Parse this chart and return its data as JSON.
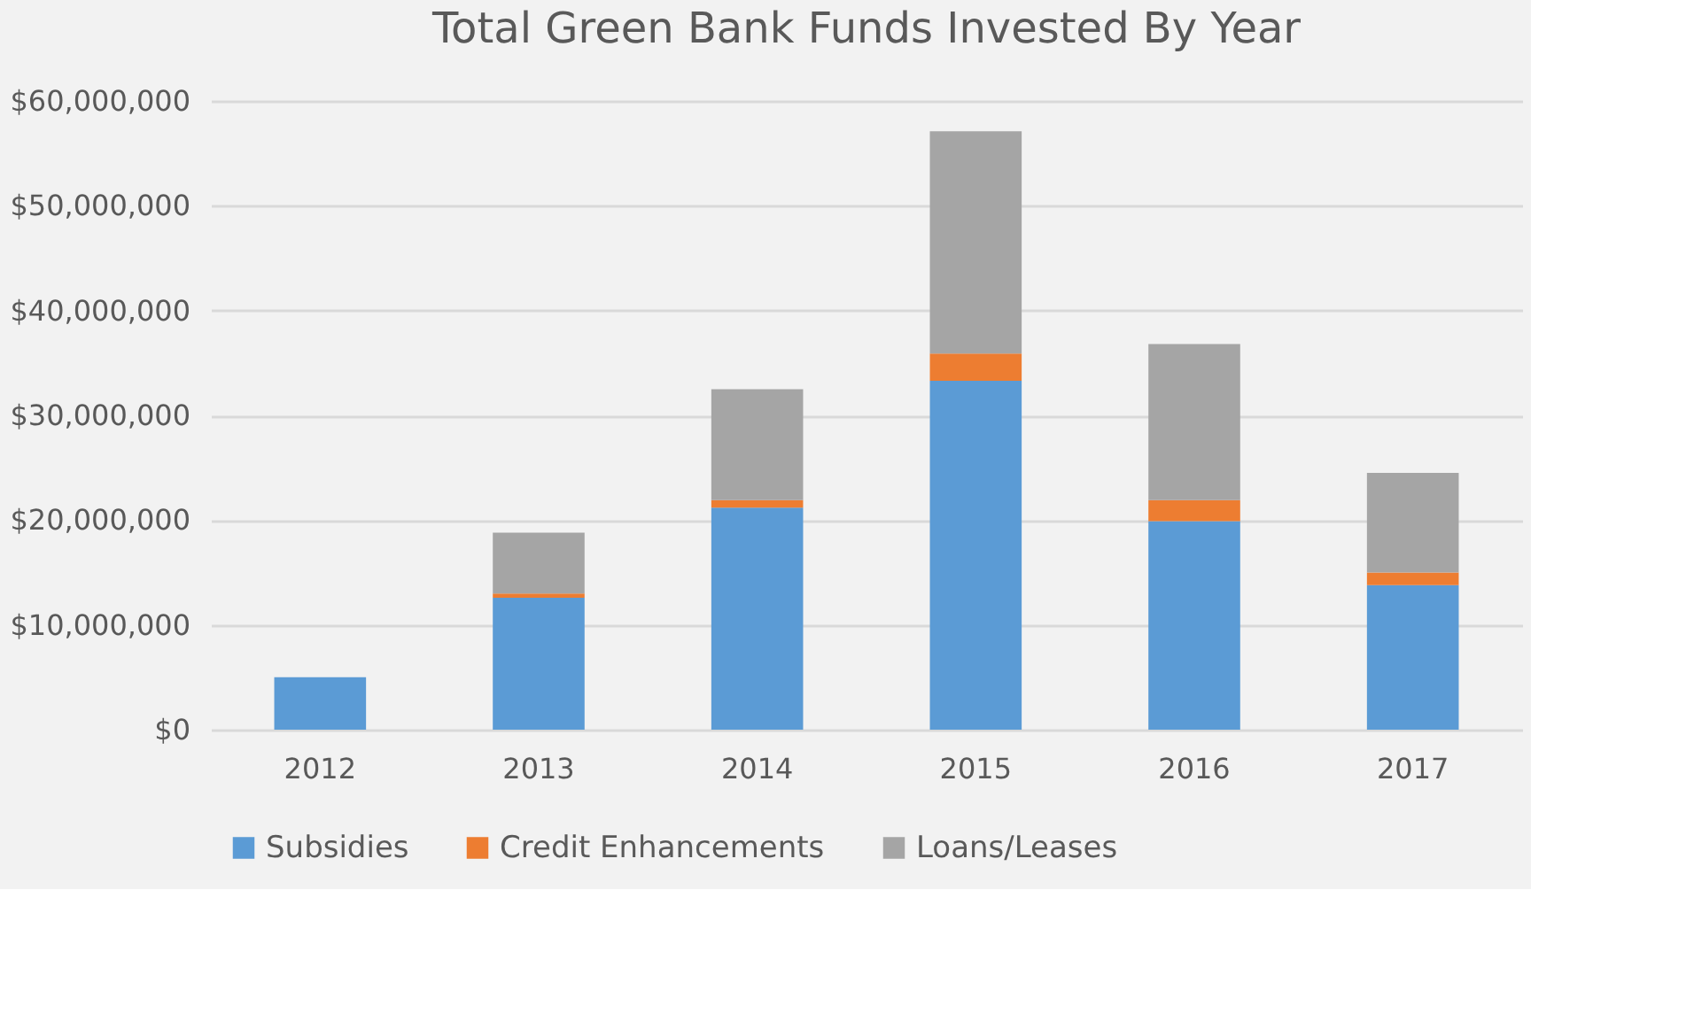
{
  "chart_data": {
    "type": "bar",
    "title": "Total Green Bank Funds Invested By Year",
    "categories": [
      "2012",
      "2013",
      "2014",
      "2015",
      "2016",
      "2017"
    ],
    "stacked": true,
    "series": [
      {
        "name": "Subsidies",
        "color": "#5b9bd5",
        "values": [
          5000000,
          12600000,
          21200000,
          33300000,
          19900000,
          13800000
        ]
      },
      {
        "name": "Credit Enhancements",
        "color": "#ed7d31",
        "values": [
          0,
          400000,
          700000,
          2600000,
          2000000,
          1200000
        ]
      },
      {
        "name": "Loans/Leases",
        "color": "#a5a5a5",
        "values": [
          0,
          5800000,
          10600000,
          21200000,
          14900000,
          9500000
        ]
      }
    ],
    "ylim": [
      0,
      60000000
    ],
    "yticks": [
      {
        "value": 0,
        "label": "$0"
      },
      {
        "value": 10000000,
        "label": "$10,000,000"
      },
      {
        "value": 20000000,
        "label": "$20,000,000"
      },
      {
        "value": 30000000,
        "label": "$30,000,000"
      },
      {
        "value": 40000000,
        "label": "$40,000,000"
      },
      {
        "value": 50000000,
        "label": "$50,000,000"
      },
      {
        "value": 60000000,
        "label": "$60,000,000"
      }
    ],
    "grid": "y",
    "legend": "bottom"
  }
}
